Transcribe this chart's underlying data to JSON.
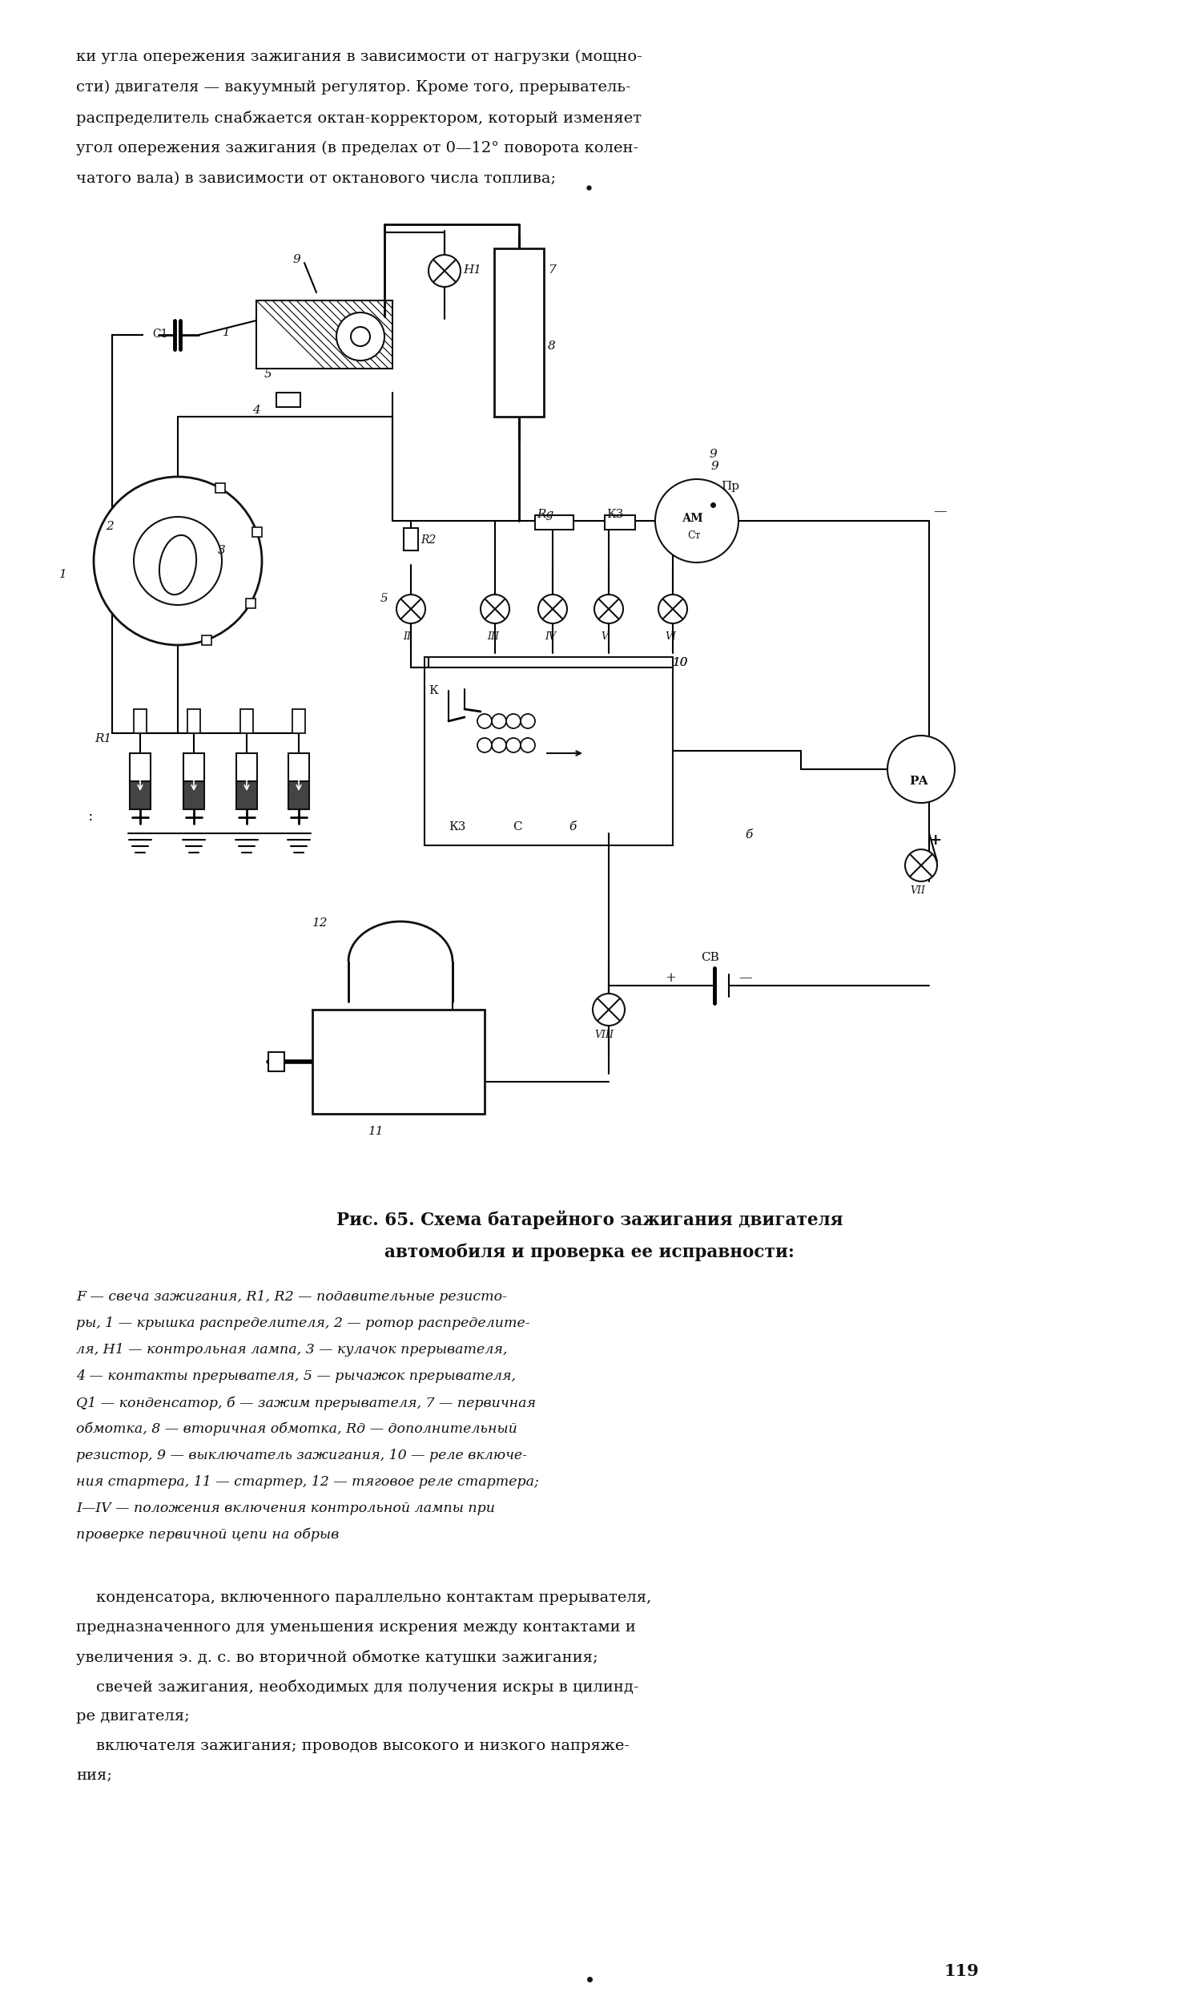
{
  "page_bg": "#ffffff",
  "text_color": "#111111",
  "line_color": "#111111",
  "top_text_lines": [
    "ки угла опережения зажигания в зависимости от нагрузки (мощно-",
    "сти) двигателя — вакуумный регулятор. Кроме того, прерыватель-",
    "распределитель снабжается октан-корректором, который изменяет",
    "угол опережения зажигания (в пределах от 0—12° поворота колен-",
    "чатого вала) в зависимости от октанового числа топлива;"
  ],
  "caption_line1": "Рис. 65. Схема батарейного зажигания двигателя",
  "caption_line2": "автомобиля и проверка ее исправности:",
  "legend_lines": [
    "F — свеча зажигания, R1, R2 — подавительные резисто-",
    "ры, 1 — крышка распределителя, 2 — ротор распределите-",
    "ля, H1 — контрольная лампа, 3 — кулачок прерывателя,",
    "4 — контакты прерывателя, 5 — рычажок прерывателя,",
    "Q1 — конденсатор, б — зажим прерывателя, 7 — первичная",
    "обмотка, 8 — вторичная обмотка, Rд — дополнительный",
    "резистор, 9 — выключатель зажигания, 10 — реле включе-",
    "ния стартера, 11 — стартер, 12 — тяговое реле стартера;",
    "I—IV — положения включения контрольной лампы при",
    "проверке первичной цепи на обрыв"
  ],
  "bottom_text_lines": [
    "    конденсатора, включенного параллельно контактам прерывателя,",
    "предназначенного для уменьшения искрения между контактами и",
    "увеличения э. д. с. во вторичной обмотке катушки зажигания;",
    "    свечей зажигания, необходимых для получения искры в цилинд-",
    "ре двигателя;",
    "    включателя зажигания; проводов высокого и низкого напряже-",
    "ния;"
  ],
  "page_number": "119"
}
